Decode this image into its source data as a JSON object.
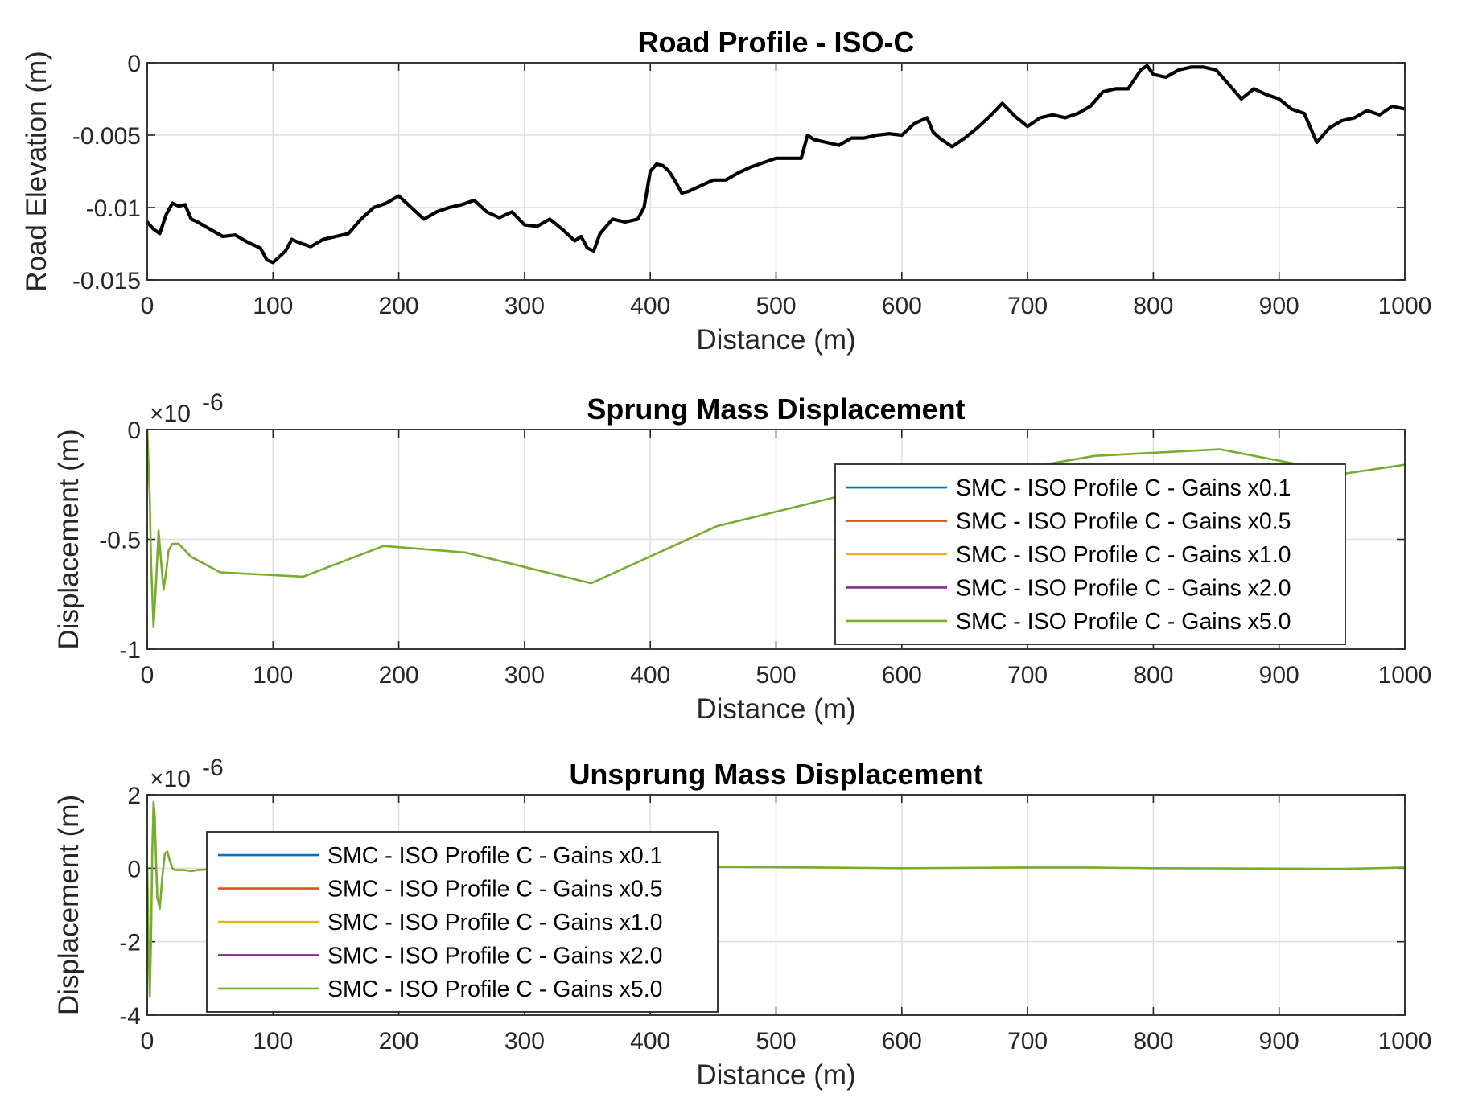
{
  "chart_data": [
    {
      "type": "line",
      "title": "Road Profile - ISO-C",
      "xlabel": "Distance (m)",
      "ylabel": "Road Elevation (m)",
      "xlim": [
        0,
        1000
      ],
      "ylim": [
        -0.015,
        0
      ],
      "x_ticks": [
        "0",
        "100",
        "200",
        "300",
        "400",
        "500",
        "600",
        "700",
        "800",
        "900",
        "1000"
      ],
      "y_ticks": [
        "0",
        "-0.005",
        "-0.01",
        "-0.015"
      ],
      "grid": true,
      "series": [
        {
          "color": "#000000",
          "x": [
            0,
            5,
            10,
            15,
            20,
            25,
            30,
            35,
            40,
            50,
            60,
            70,
            80,
            90,
            95,
            100,
            110,
            115,
            120,
            130,
            140,
            150,
            160,
            170,
            180,
            190,
            200,
            210,
            220,
            230,
            240,
            250,
            260,
            270,
            280,
            290,
            300,
            310,
            320,
            330,
            340,
            345,
            350,
            355,
            360,
            370,
            380,
            390,
            395,
            400,
            405,
            410,
            415,
            420,
            425,
            430,
            440,
            450,
            460,
            470,
            480,
            490,
            500,
            510,
            520,
            525,
            530,
            540,
            550,
            560,
            570,
            580,
            590,
            600,
            610,
            620,
            625,
            630,
            640,
            650,
            660,
            670,
            680,
            690,
            700,
            710,
            720,
            730,
            740,
            750,
            760,
            770,
            780,
            790,
            795,
            800,
            810,
            820,
            830,
            840,
            850,
            860,
            870,
            880,
            890,
            900,
            910,
            920,
            925,
            930,
            940,
            950,
            960,
            970,
            980,
            990,
            1000
          ],
          "y": [
            -0.011,
            -0.0115,
            -0.0118,
            -0.0105,
            -0.0097,
            -0.0099,
            -0.0098,
            -0.0108,
            -0.011,
            -0.0115,
            -0.012,
            -0.0119,
            -0.0124,
            -0.0128,
            -0.0136,
            -0.0138,
            -0.013,
            -0.0122,
            -0.0124,
            -0.0127,
            -0.0122,
            -0.012,
            -0.0118,
            -0.0108,
            -0.01,
            -0.0097,
            -0.0092,
            -0.01,
            -0.0108,
            -0.0103,
            -0.01,
            -0.0098,
            -0.0095,
            -0.0103,
            -0.0107,
            -0.0103,
            -0.0112,
            -0.0113,
            -0.0108,
            -0.0115,
            -0.0123,
            -0.012,
            -0.0128,
            -0.013,
            -0.0118,
            -0.0108,
            -0.011,
            -0.0108,
            -0.01,
            -0.0075,
            -0.007,
            -0.0071,
            -0.0075,
            -0.0082,
            -0.009,
            -0.0089,
            -0.0085,
            -0.0081,
            -0.0081,
            -0.0076,
            -0.0072,
            -0.0069,
            -0.0066,
            -0.0066,
            -0.0066,
            -0.005,
            -0.0053,
            -0.0055,
            -0.0057,
            -0.0052,
            -0.0052,
            -0.005,
            -0.0049,
            -0.005,
            -0.0042,
            -0.0038,
            -0.0048,
            -0.0052,
            -0.0058,
            -0.0052,
            -0.0045,
            -0.0037,
            -0.0028,
            -0.0037,
            -0.0044,
            -0.0038,
            -0.0036,
            -0.0038,
            -0.0035,
            -0.003,
            -0.002,
            -0.0018,
            -0.0018,
            -0.0005,
            -0.0002,
            -0.0008,
            -0.001,
            -0.0005,
            -0.0003,
            -0.0003,
            -0.0005,
            -0.0015,
            -0.0025,
            -0.0018,
            -0.0022,
            -0.0025,
            -0.0032,
            -0.0035,
            -0.0045,
            -0.0055,
            -0.0045,
            -0.004,
            -0.0038,
            -0.0033,
            -0.0036,
            -0.003,
            -0.0032
          ]
        }
      ]
    },
    {
      "type": "line",
      "title": "Sprung Mass Displacement",
      "xlabel": "Distance (m)",
      "ylabel": "Displacement (m)",
      "exponent_base": "×10",
      "exponent_power": "-6",
      "xlim": [
        0,
        1000
      ],
      "ylim": [
        -1,
        0
      ],
      "x_ticks": [
        "0",
        "100",
        "200",
        "300",
        "400",
        "500",
        "600",
        "700",
        "800",
        "900",
        "1000"
      ],
      "y_ticks": [
        "0",
        "-0.5",
        "-1"
      ],
      "grid": true,
      "legend_position": "right",
      "series": [
        {
          "name": "SMC - ISO Profile C - Gains x0.1",
          "color": "#0072BD",
          "x": [],
          "y": []
        },
        {
          "name": "SMC - ISO Profile C - Gains x0.5",
          "color": "#D95319",
          "x": [],
          "y": []
        },
        {
          "name": "SMC - ISO Profile C - Gains x1.0",
          "color": "#EDB120",
          "x": [],
          "y": []
        },
        {
          "name": "SMC - ISO Profile C - Gains x2.0",
          "color": "#7E2F8E",
          "x": [],
          "y": []
        },
        {
          "name": "SMC - ISO Profile C - Gains x5.0",
          "color": "#77AC30",
          "x": [
            0,
            2,
            3,
            5,
            7,
            9,
            11,
            13,
            15,
            17,
            20,
            25,
            35,
            58,
            124,
            188,
            253,
            353,
            453,
            553,
            653,
            753,
            853,
            953,
            1000
          ],
          "y": [
            0,
            -0.3,
            -0.6,
            -0.9,
            -0.7,
            -0.46,
            -0.6,
            -0.73,
            -0.65,
            -0.55,
            -0.52,
            -0.52,
            -0.58,
            -0.65,
            -0.67,
            -0.53,
            -0.56,
            -0.7,
            -0.44,
            -0.3,
            -0.22,
            -0.12,
            -0.09,
            -0.2,
            -0.16
          ]
        }
      ]
    },
    {
      "type": "line",
      "title": "Unsprung Mass Displacement",
      "xlabel": "Distance (m)",
      "ylabel": "Displacement (m)",
      "exponent_base": "×10",
      "exponent_power": "-6",
      "xlim": [
        0,
        1000
      ],
      "ylim": [
        -4,
        2
      ],
      "x_ticks": [
        "0",
        "100",
        "200",
        "300",
        "400",
        "500",
        "600",
        "700",
        "800",
        "900",
        "1000"
      ],
      "y_ticks": [
        "2",
        "0",
        "-2",
        "-4"
      ],
      "grid": true,
      "legend_position": "left",
      "series": [
        {
          "name": "SMC - ISO Profile C - Gains x0.1",
          "color": "#0072BD",
          "x": [],
          "y": []
        },
        {
          "name": "SMC - ISO Profile C - Gains x0.5",
          "color": "#D95319",
          "x": [],
          "y": []
        },
        {
          "name": "SMC - ISO Profile C - Gains x1.0",
          "color": "#EDB120",
          "x": [],
          "y": []
        },
        {
          "name": "SMC - ISO Profile C - Gains x2.0",
          "color": "#7E2F8E",
          "x": [],
          "y": []
        },
        {
          "name": "SMC - ISO Profile C - Gains x5.0",
          "color": "#77AC30",
          "x": [
            0,
            1,
            2,
            3,
            4,
            5,
            6,
            7,
            8,
            10,
            12,
            14,
            16,
            18,
            20,
            22,
            25,
            30,
            35,
            40,
            50,
            100,
            200,
            300,
            400,
            500,
            600,
            700,
            750,
            800,
            900,
            950,
            1000
          ],
          "y": [
            0,
            -2.0,
            -3.5,
            -2.0,
            0.5,
            1.8,
            1.4,
            0.2,
            -0.8,
            -1.1,
            -0.2,
            0.4,
            0.45,
            0.2,
            0.0,
            -0.05,
            -0.05,
            -0.05,
            -0.08,
            -0.05,
            -0.03,
            -0.02,
            0.05,
            0.05,
            0.05,
            0.03,
            0.0,
            0.02,
            0.02,
            0.0,
            -0.01,
            -0.02,
            0.02
          ]
        }
      ]
    }
  ]
}
